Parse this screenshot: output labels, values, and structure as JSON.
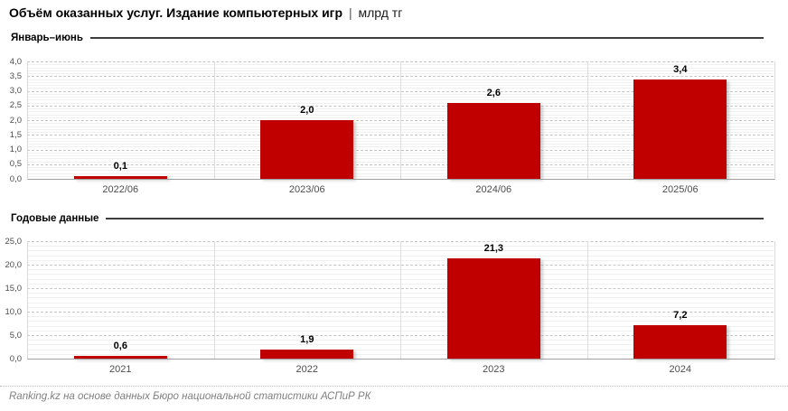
{
  "title": {
    "main": "Объём оказанных услуг. Издание компьютерных игр",
    "separator": "|",
    "unit": "млрд тг"
  },
  "colors": {
    "bar": "#c00000",
    "major_grid": "#c6c6c6",
    "minor_grid": "#f0f0f0",
    "section_rule": "#3d3d3d",
    "tick_text": "#4d4d4d",
    "footer_text": "#7f7f7f"
  },
  "chart_data": [
    {
      "type": "bar",
      "title": "Январь–июнь",
      "categories": [
        "2022/06",
        "2023/06",
        "2024/06",
        "2025/06"
      ],
      "values": [
        0.1,
        2.0,
        2.6,
        3.4
      ],
      "value_labels": [
        "0,1",
        "2,0",
        "2,6",
        "3,4"
      ],
      "xlabel": "",
      "ylabel": "",
      "ylim": [
        0,
        4.0
      ],
      "ytick_step": 0.5,
      "minor_step": 0.1,
      "ytick_labels": [
        "0,0",
        "0,5",
        "1,0",
        "1,5",
        "2,0",
        "2,5",
        "3,0",
        "3,5",
        "4,0"
      ],
      "grid": true,
      "legend": false,
      "bar_color": "#c00000"
    },
    {
      "type": "bar",
      "title": "Годовые данные",
      "categories": [
        "2021",
        "2022",
        "2023",
        "2024"
      ],
      "values": [
        0.6,
        1.9,
        21.3,
        7.2
      ],
      "value_labels": [
        "0,6",
        "1,9",
        "21,3",
        "7,2"
      ],
      "xlabel": "",
      "ylabel": "",
      "ylim": [
        0,
        25.0
      ],
      "ytick_step": 5.0,
      "minor_step": 1.0,
      "ytick_labels": [
        "0,0",
        "5,0",
        "10,0",
        "15,0",
        "20,0",
        "25,0"
      ],
      "grid": true,
      "legend": false,
      "bar_color": "#c00000"
    }
  ],
  "footer": {
    "source": "Ranking.kz на основе данных Бюро национальной статистики АСПиР РК"
  }
}
